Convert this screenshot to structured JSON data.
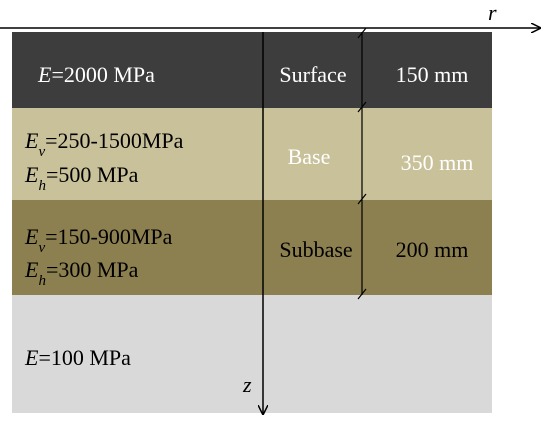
{
  "axes": {
    "r": "r",
    "z": "z"
  },
  "layers": [
    {
      "modulus": [
        {
          "symbol": "E",
          "value": "=2000 MPa"
        }
      ],
      "name": "Surface",
      "thickness": "150 mm"
    },
    {
      "modulus": [
        {
          "symbol": "E",
          "subscript": "v",
          "value": "=250-1500MPa"
        },
        {
          "symbol": "E",
          "subscript": "h",
          "value": "=500 MPa"
        }
      ],
      "name": "Base",
      "thickness": "350 mm"
    },
    {
      "modulus": [
        {
          "symbol": "E",
          "subscript": "v",
          "value": "=150-900MPa"
        },
        {
          "symbol": "E",
          "subscript": "h",
          "value": "=300 MPa"
        }
      ],
      "name": "Subbase",
      "thickness": "200 mm"
    },
    {
      "modulus": [
        {
          "symbol": "E",
          "value": "=100 MPa"
        }
      ]
    }
  ]
}
